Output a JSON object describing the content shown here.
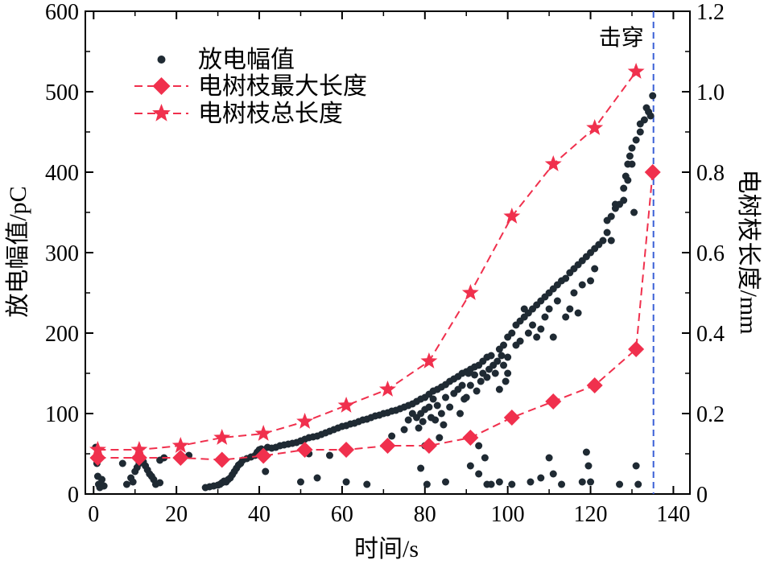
{
  "chart_data": {
    "type": "scatter",
    "xlabel": "时间/s",
    "ylabel_left": "放电幅值/pC",
    "ylabel_right": "电树枝长度/mm",
    "xlim": [
      -2,
      144
    ],
    "ylim_left": [
      0,
      600
    ],
    "ylim_right": [
      0,
      1.2
    ],
    "x_ticks": [
      0,
      20,
      40,
      60,
      80,
      100,
      120,
      140
    ],
    "y_ticks_left": [
      0,
      100,
      200,
      300,
      400,
      500,
      600
    ],
    "y_ticks_right": [
      "0",
      "0.2",
      "0.4",
      "0.6",
      "0.8",
      "1.0",
      "1.2"
    ],
    "legend_position": "top-left",
    "annotation": {
      "text": "击穿",
      "x": 135
    },
    "colors": {
      "discharge": "#1f2a33",
      "tree": "#f0304d",
      "breakdown_line": "#3a5fd6"
    },
    "series": [
      {
        "name": "放电幅值",
        "axis": "left",
        "style": "dots",
        "points": [
          [
            0.5,
            58
          ],
          [
            0.8,
            38
          ],
          [
            1,
            22
          ],
          [
            1.2,
            12
          ],
          [
            1.5,
            8
          ],
          [
            2,
            18
          ],
          [
            2.5,
            10
          ],
          [
            7,
            38
          ],
          [
            8,
            12
          ],
          [
            9,
            20
          ],
          [
            9.5,
            15
          ],
          [
            10,
            28
          ],
          [
            10.5,
            33
          ],
          [
            11,
            38
          ],
          [
            11.5,
            45
          ],
          [
            12,
            40
          ],
          [
            12.5,
            35
          ],
          [
            13,
            30
          ],
          [
            13.5,
            25
          ],
          [
            14,
            22
          ],
          [
            14.5,
            18
          ],
          [
            15,
            12
          ],
          [
            16,
            14
          ],
          [
            16,
            42
          ],
          [
            17,
            45
          ],
          [
            23,
            48
          ],
          [
            27,
            8
          ],
          [
            28,
            9
          ],
          [
            29,
            10
          ],
          [
            30,
            11
          ],
          [
            30.5,
            12
          ],
          [
            31,
            14
          ],
          [
            31.5,
            16
          ],
          [
            32,
            15
          ],
          [
            32.5,
            18
          ],
          [
            33,
            20
          ],
          [
            33.5,
            24
          ],
          [
            34,
            28
          ],
          [
            34.5,
            32
          ],
          [
            35,
            36
          ],
          [
            35.5,
            38
          ],
          [
            36,
            42
          ],
          [
            37,
            44
          ],
          [
            38,
            46
          ],
          [
            39,
            48
          ],
          [
            39.5,
            52
          ],
          [
            40,
            55
          ],
          [
            40.5,
            56
          ],
          [
            41,
            54
          ],
          [
            41.5,
            28
          ],
          [
            42,
            58
          ],
          [
            43,
            57
          ],
          [
            44,
            58
          ],
          [
            45,
            60
          ],
          [
            46,
            61
          ],
          [
            47,
            62
          ],
          [
            48,
            63
          ],
          [
            49,
            64
          ],
          [
            50,
            66
          ],
          [
            50,
            15
          ],
          [
            51,
            68
          ],
          [
            52,
            70
          ],
          [
            52,
            50
          ],
          [
            53,
            71
          ],
          [
            54,
            72
          ],
          [
            54,
            20
          ],
          [
            55,
            74
          ],
          [
            56,
            76
          ],
          [
            57,
            78
          ],
          [
            57,
            48
          ],
          [
            58,
            80
          ],
          [
            59,
            82
          ],
          [
            60,
            84
          ],
          [
            61,
            85
          ],
          [
            61,
            15
          ],
          [
            62,
            87
          ],
          [
            63,
            88
          ],
          [
            64,
            90
          ],
          [
            65,
            92
          ],
          [
            66,
            93
          ],
          [
            66,
            12
          ],
          [
            67,
            95
          ],
          [
            68,
            97
          ],
          [
            69,
            98
          ],
          [
            70,
            100
          ],
          [
            71,
            101
          ],
          [
            72,
            103
          ],
          [
            72,
            72
          ],
          [
            73,
            104
          ],
          [
            74,
            106
          ],
          [
            75,
            108
          ],
          [
            75,
            80
          ],
          [
            76,
            110
          ],
          [
            76,
            92
          ],
          [
            77,
            112
          ],
          [
            77,
            100
          ],
          [
            78,
            115
          ],
          [
            78,
            95
          ],
          [
            78.5,
            82
          ],
          [
            79,
            118
          ],
          [
            79,
            100
          ],
          [
            79,
            32
          ],
          [
            79.5,
            90
          ],
          [
            80,
            120
          ],
          [
            80,
            105
          ],
          [
            80,
            60
          ],
          [
            80.5,
            12
          ],
          [
            81,
            124
          ],
          [
            81,
            108
          ],
          [
            81.5,
            95
          ],
          [
            82,
            128
          ],
          [
            82,
            118
          ],
          [
            82.5,
            92
          ],
          [
            83,
            130
          ],
          [
            83,
            110
          ],
          [
            83.5,
            70
          ],
          [
            84,
            133
          ],
          [
            84,
            100
          ],
          [
            84.5,
            86
          ],
          [
            85,
            136
          ],
          [
            85,
            120
          ],
          [
            85,
            15
          ],
          [
            86,
            140
          ],
          [
            86,
            108
          ],
          [
            87,
            143
          ],
          [
            87,
            125
          ],
          [
            88,
            146
          ],
          [
            88,
            130
          ],
          [
            88.5,
            100
          ],
          [
            89,
            150
          ],
          [
            89,
            135
          ],
          [
            89.5,
            118
          ],
          [
            90,
            152
          ],
          [
            90,
            120
          ],
          [
            90.5,
            150
          ],
          [
            91,
            155
          ],
          [
            91,
            135
          ],
          [
            91,
            35
          ],
          [
            92,
            158
          ],
          [
            92,
            148
          ],
          [
            92.5,
            128
          ],
          [
            93,
            160
          ],
          [
            93,
            60
          ],
          [
            93,
            25
          ],
          [
            93.5,
            140
          ],
          [
            94,
            165
          ],
          [
            94,
            150
          ],
          [
            94.5,
            45
          ],
          [
            95,
            170
          ],
          [
            95,
            145
          ],
          [
            95,
            12
          ],
          [
            95.5,
            155
          ],
          [
            96,
            172
          ],
          [
            96,
            12
          ],
          [
            96.5,
            160
          ],
          [
            97,
            150
          ],
          [
            97.5,
            165
          ],
          [
            98,
            180
          ],
          [
            98,
            130
          ],
          [
            98,
            15
          ],
          [
            98.5,
            172
          ],
          [
            99,
            185
          ],
          [
            99,
            160
          ],
          [
            99.5,
            140
          ],
          [
            100,
            195
          ],
          [
            100,
            170
          ],
          [
            100,
            150
          ],
          [
            101,
            200
          ],
          [
            101,
            12
          ],
          [
            102,
            210
          ],
          [
            102,
            185
          ],
          [
            103,
            215
          ],
          [
            103,
            190
          ],
          [
            104,
            220
          ],
          [
            104,
            230
          ],
          [
            105,
            225
          ],
          [
            105,
            200
          ],
          [
            105.5,
            15
          ],
          [
            106,
            230
          ],
          [
            106,
            210
          ],
          [
            107,
            235
          ],
          [
            107,
            195
          ],
          [
            108,
            240
          ],
          [
            108,
            205
          ],
          [
            108,
            20
          ],
          [
            109,
            245
          ],
          [
            109,
            220
          ],
          [
            110,
            250
          ],
          [
            110,
            230
          ],
          [
            110,
            45
          ],
          [
            111,
            255
          ],
          [
            111,
            195
          ],
          [
            111,
            25
          ],
          [
            112,
            260
          ],
          [
            112,
            240
          ],
          [
            113,
            265
          ],
          [
            113,
            12
          ],
          [
            114,
            268
          ],
          [
            114,
            220
          ],
          [
            115,
            275
          ],
          [
            115,
            230
          ],
          [
            116,
            280
          ],
          [
            116,
            250
          ],
          [
            117,
            285
          ],
          [
            117,
            225
          ],
          [
            118,
            290
          ],
          [
            118,
            260
          ],
          [
            118,
            15
          ],
          [
            119,
            295
          ],
          [
            119,
            52
          ],
          [
            119.5,
            35
          ],
          [
            120,
            300
          ],
          [
            120,
            265
          ],
          [
            120,
            15
          ],
          [
            121,
            305
          ],
          [
            121,
            280
          ],
          [
            122,
            310
          ],
          [
            123,
            315
          ],
          [
            124,
            340
          ],
          [
            124,
            325
          ],
          [
            125,
            345
          ],
          [
            125,
            315
          ],
          [
            126,
            355
          ],
          [
            126,
            360
          ],
          [
            127,
            360
          ],
          [
            127,
            12
          ],
          [
            128,
            365
          ],
          [
            128,
            380
          ],
          [
            128.5,
            395
          ],
          [
            129,
            410
          ],
          [
            129,
            390
          ],
          [
            129.5,
            420
          ],
          [
            130,
            430
          ],
          [
            130,
            410
          ],
          [
            130.5,
            350
          ],
          [
            131,
            440
          ],
          [
            131,
            35
          ],
          [
            131.5,
            12
          ],
          [
            132,
            450
          ],
          [
            132,
            460
          ],
          [
            133,
            465
          ],
          [
            133.5,
            480
          ],
          [
            134,
            475
          ],
          [
            134.5,
            470
          ],
          [
            135,
            495
          ]
        ]
      },
      {
        "name": "电树枝最大长度",
        "axis": "right",
        "style": "dashed-diamond",
        "x": [
          1,
          11,
          21,
          31,
          41,
          51,
          61,
          71,
          81,
          91,
          101,
          111,
          121,
          131,
          135
        ],
        "y": [
          0.09,
          0.09,
          0.09,
          0.085,
          0.095,
          0.11,
          0.11,
          0.12,
          0.12,
          0.14,
          0.19,
          0.23,
          0.27,
          0.36,
          0.8
        ]
      },
      {
        "name": "电树枝总长度",
        "axis": "right",
        "style": "dashed-star",
        "x": [
          1,
          11,
          21,
          31,
          41,
          51,
          61,
          71,
          81,
          91,
          101,
          111,
          121,
          131
        ],
        "y": [
          0.11,
          0.11,
          0.12,
          0.14,
          0.15,
          0.18,
          0.22,
          0.26,
          0.33,
          0.5,
          0.69,
          0.82,
          0.91,
          1.05
        ]
      }
    ]
  }
}
